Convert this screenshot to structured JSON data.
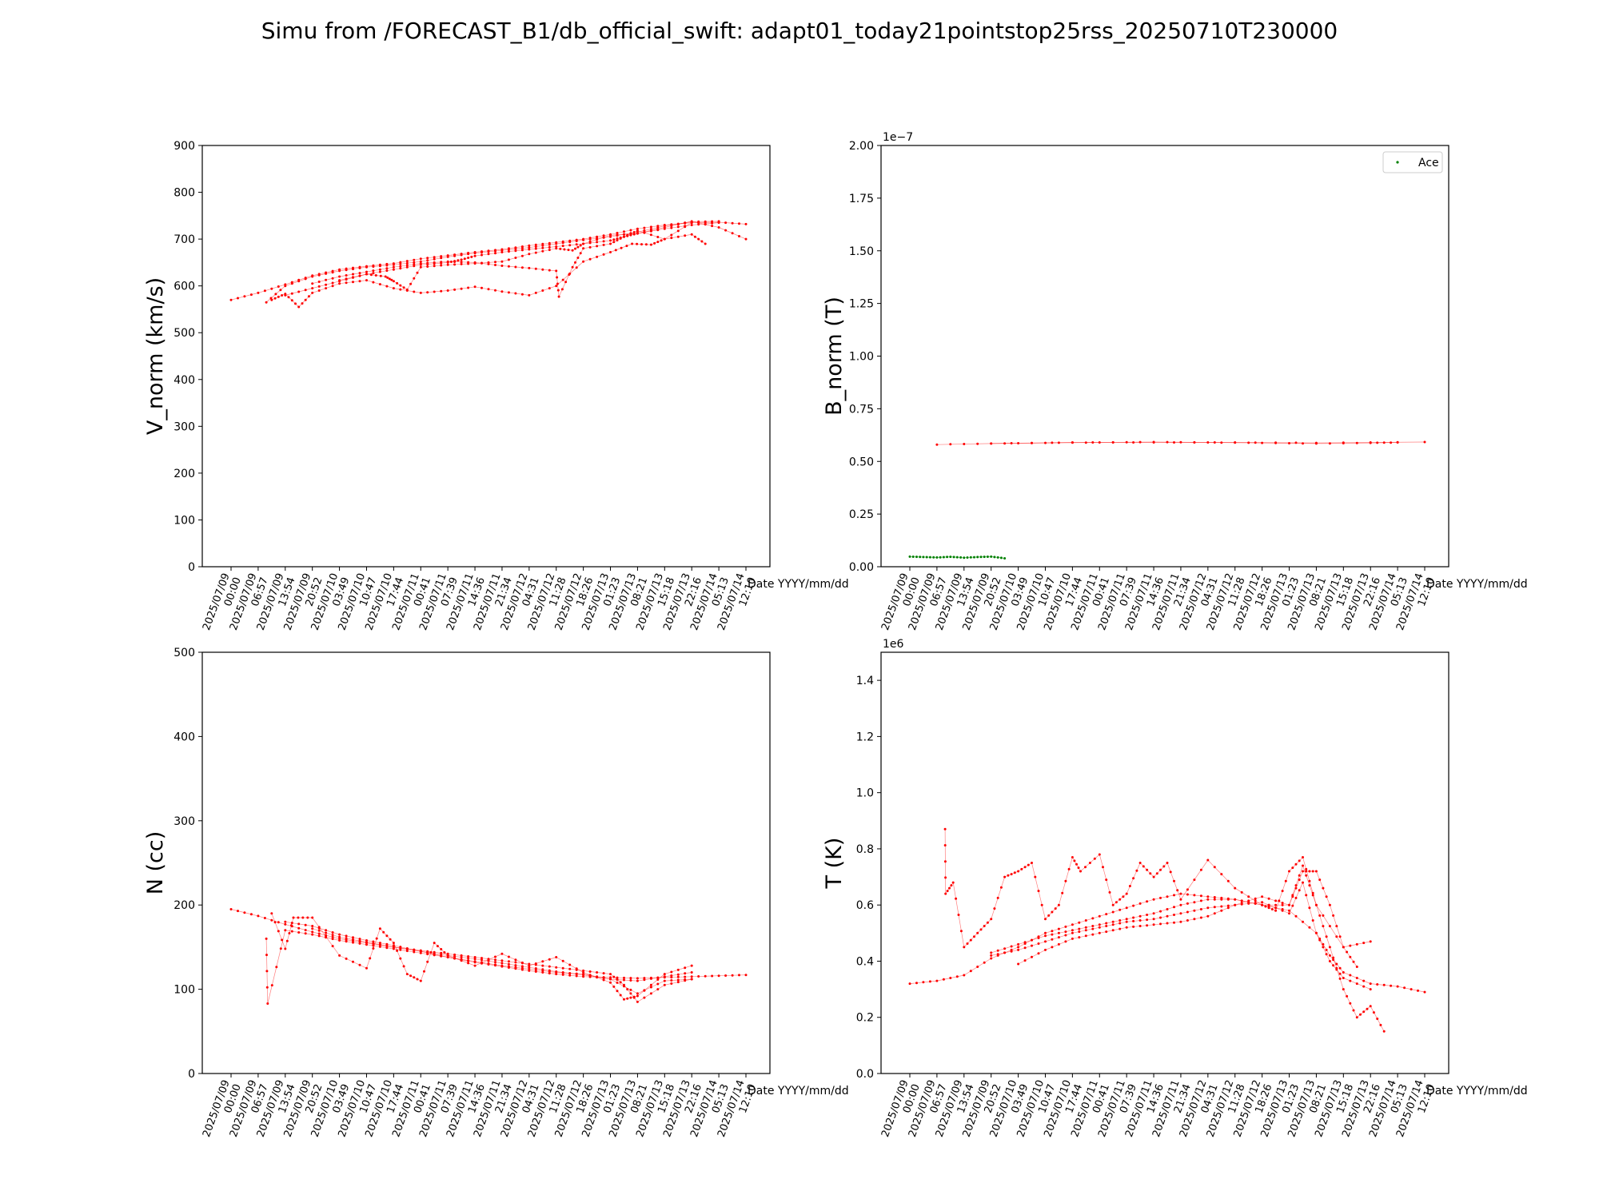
{
  "figure": {
    "title": "Simu from /FORECAST_B1/db_official_swift: adapt01_today21pointstop25rss_20250710T230000"
  },
  "x_ticks": [
    "2025/07/09 00:00",
    "2025/07/09 06:57",
    "2025/07/09 13:54",
    "2025/07/09 20:52",
    "2025/07/10 03:49",
    "2025/07/10 10:47",
    "2025/07/10 17:44",
    "2025/07/11 00:41",
    "2025/07/11 07:39",
    "2025/07/11 14:36",
    "2025/07/11 21:34",
    "2025/07/12 04:31",
    "2025/07/12 11:28",
    "2025/07/12 18:26",
    "2025/07/13 01:23",
    "2025/07/13 08:21",
    "2025/07/13 15:18",
    "2025/07/13 22:16",
    "2025/07/14 05:13",
    "2025/07/14 12:10"
  ],
  "x_label": "Date YYYY/mm/dd",
  "colors": {
    "simu": "#ff0000",
    "ace": "#008000"
  },
  "chart_data": [
    {
      "id": "vnorm",
      "type": "scatter",
      "ylabel": "V_norm (km/s)",
      "ylim": [
        0,
        900
      ],
      "yticks": [
        0,
        100,
        200,
        300,
        400,
        500,
        600,
        700,
        800,
        900
      ],
      "ytick_labels": [
        "0",
        "100",
        "200",
        "300",
        "400",
        "500",
        "600",
        "700",
        "800",
        "900"
      ],
      "offset_text": "",
      "legend": [],
      "series": [
        {
          "color": "#ff0000",
          "x": [
            0,
            1,
            2,
            3,
            4,
            5,
            6,
            7,
            8,
            9,
            10,
            11,
            12,
            13,
            14,
            15,
            16,
            17,
            18,
            19
          ],
          "y": [
            570,
            585,
            603,
            622,
            635,
            642,
            648,
            658,
            665,
            672,
            678,
            686,
            693,
            700,
            710,
            722,
            730,
            735,
            736,
            732
          ]
        },
        {
          "color": "#ff0000",
          "x": [
            1.3,
            2,
            3,
            4,
            5,
            6,
            7,
            8,
            9,
            10,
            11,
            12,
            13,
            14,
            15,
            16,
            17,
            18
          ],
          "y": [
            565,
            600,
            620,
            632,
            640,
            645,
            652,
            662,
            670,
            676,
            682,
            690,
            698,
            705,
            715,
            728,
            737,
            738
          ]
        },
        {
          "color": "#ff0000",
          "x": [
            1.5,
            2,
            2.5,
            3,
            4,
            5,
            6,
            7,
            8,
            9,
            10,
            11,
            12,
            13,
            14,
            14.8,
            15.5,
            16,
            17
          ],
          "y": [
            570,
            583,
            555,
            585,
            605,
            612,
            595,
            585,
            590,
            598,
            588,
            580,
            600,
            652,
            672,
            690,
            688,
            700,
            735
          ]
        },
        {
          "color": "#ff0000",
          "x": [
            2,
            3,
            4,
            5,
            5.7,
            6,
            6.5,
            7,
            8,
            9,
            10,
            11,
            12,
            12.6,
            13,
            14,
            15,
            16,
            17,
            18,
            19
          ],
          "y": [
            580,
            595,
            610,
            625,
            620,
            610,
            592,
            640,
            645,
            648,
            652,
            668,
            680,
            676,
            690,
            708,
            712,
            725,
            738,
            725,
            700
          ]
        },
        {
          "color": "#ff0000",
          "x": [
            3,
            4,
            5,
            6,
            7,
            8,
            9,
            10,
            11,
            12,
            12.1,
            12.6,
            13,
            14,
            14.5,
            15,
            16,
            17,
            17.5
          ],
          "y": [
            605,
            620,
            630,
            640,
            648,
            652,
            650,
            643,
            638,
            632,
            577,
            640,
            680,
            690,
            705,
            718,
            700,
            710,
            690
          ]
        },
        {
          "color": "#ff0000",
          "x": [
            4,
            5,
            6,
            7,
            8,
            8.5,
            9,
            10,
            11,
            12,
            13,
            14,
            14.5,
            15,
            16,
            17,
            18
          ],
          "y": [
            612,
            625,
            635,
            645,
            650,
            656,
            664,
            672,
            678,
            684,
            690,
            697,
            705,
            712,
            722,
            730,
            735
          ]
        }
      ]
    },
    {
      "id": "bnorm",
      "type": "scatter",
      "ylabel": "B_norm (T)",
      "ylim": [
        0,
        2.0
      ],
      "yticks": [
        0,
        0.25,
        0.5,
        0.75,
        1.0,
        1.25,
        1.5,
        1.75,
        2.0
      ],
      "ytick_labels": [
        "0.00",
        "0.25",
        "0.50",
        "0.75",
        "1.00",
        "1.25",
        "1.50",
        "1.75",
        "2.00"
      ],
      "offset_text": "1e−7",
      "legend": [
        {
          "label": "Ace",
          "color": "#008000"
        }
      ],
      "series": [
        {
          "color": "#ff0000",
          "x": [
            1,
            3,
            6,
            9,
            12,
            15,
            19
          ],
          "y": [
            0.58,
            0.585,
            0.59,
            0.59,
            0.59,
            0.588,
            0.592
          ]
        },
        {
          "color": "#ff0000",
          "x": [
            3,
            5,
            7,
            9,
            11,
            13,
            15,
            17,
            18
          ],
          "y": [
            0.585,
            0.588,
            0.59,
            0.592,
            0.59,
            0.588,
            0.585,
            0.588,
            0.59
          ]
        },
        {
          "color": "#008000",
          "x": [
            0,
            0.5,
            1,
            1.5,
            2,
            2.5,
            3,
            3.5
          ],
          "y": [
            0.048,
            0.046,
            0.044,
            0.047,
            0.043,
            0.046,
            0.048,
            0.04
          ]
        }
      ]
    },
    {
      "id": "n",
      "type": "scatter",
      "ylabel": "N (cc)",
      "ylim": [
        0,
        500
      ],
      "yticks": [
        0,
        100,
        200,
        300,
        400,
        500
      ],
      "ytick_labels": [
        "0",
        "100",
        "200",
        "300",
        "400",
        "500"
      ],
      "offset_text": "",
      "legend": [],
      "series": [
        {
          "color": "#ff0000",
          "x": [
            0,
            1,
            2,
            3,
            4,
            5,
            6,
            7,
            8,
            9,
            10,
            11,
            12,
            13,
            14,
            15,
            16,
            17,
            18,
            19
          ],
          "y": [
            195,
            187,
            177,
            168,
            160,
            155,
            150,
            145,
            138,
            132,
            127,
            122,
            118,
            115,
            114,
            113,
            114,
            115,
            116,
            117
          ]
        },
        {
          "color": "#ff0000",
          "x": [
            1.3,
            1.35,
            2,
            3,
            4,
            5,
            6,
            7,
            8,
            9,
            10,
            11,
            12,
            13,
            14,
            15,
            16,
            17
          ],
          "y": [
            160,
            83,
            170,
            165,
            158,
            153,
            148,
            143,
            138,
            133,
            128,
            124,
            120,
            118,
            112,
            95,
            110,
            112
          ]
        },
        {
          "color": "#ff0000",
          "x": [
            1.5,
            2,
            2.3,
            3,
            4,
            5,
            5.5,
            6,
            6.5,
            7,
            7.5,
            8,
            9,
            10,
            11,
            12,
            13,
            14,
            14.5,
            15,
            16,
            17
          ],
          "y": [
            190,
            148,
            185,
            185,
            140,
            125,
            172,
            155,
            118,
            110,
            155,
            140,
            128,
            142,
            128,
            138,
            120,
            108,
            88,
            92,
            118,
            128
          ]
        },
        {
          "color": "#ff0000",
          "x": [
            2,
            3,
            4,
            5,
            6,
            7,
            8,
            9,
            10,
            11,
            12,
            13,
            14,
            15,
            16,
            17
          ],
          "y": [
            180,
            175,
            165,
            158,
            152,
            145,
            140,
            136,
            131,
            126,
            121,
            117,
            112,
            110,
            115,
            120
          ]
        },
        {
          "color": "#ff0000",
          "x": [
            3,
            4,
            5,
            6,
            7,
            8,
            9,
            10,
            11,
            12,
            13,
            14,
            14.5,
            15,
            16,
            17
          ],
          "y": [
            172,
            162,
            156,
            150,
            146,
            142,
            138,
            134,
            130,
            126,
            122,
            118,
            105,
            85,
            105,
            112
          ]
        }
      ]
    },
    {
      "id": "t",
      "type": "scatter",
      "ylabel": "T (K)",
      "ylim": [
        0,
        1.5
      ],
      "yticks": [
        0,
        0.2,
        0.4,
        0.6,
        0.8,
        1.0,
        1.2,
        1.4
      ],
      "ytick_labels": [
        "0.0",
        "0.2",
        "0.4",
        "0.6",
        "0.8",
        "1.0",
        "1.2",
        "1.4"
      ],
      "offset_text": "1e6",
      "legend": [],
      "series": [
        {
          "color": "#ff0000",
          "x": [
            0,
            1,
            2,
            3,
            4,
            5,
            6,
            7,
            8,
            9,
            10,
            11,
            12,
            13,
            14,
            15,
            15.5,
            16,
            17,
            18,
            19
          ],
          "y": [
            0.32,
            0.33,
            0.35,
            0.41,
            0.45,
            0.5,
            0.53,
            0.56,
            0.59,
            0.62,
            0.64,
            0.63,
            0.62,
            0.6,
            0.58,
            0.5,
            0.42,
            0.36,
            0.32,
            0.31,
            0.29
          ]
        },
        {
          "color": "#ff0000",
          "x": [
            1.3,
            1.32,
            1.6,
            2,
            2.5,
            3,
            3.5,
            4,
            4.5,
            5,
            5.5,
            6,
            6.3,
            7,
            7.5,
            8,
            8.5,
            9,
            9.5,
            10,
            11,
            12,
            13,
            13.5,
            14,
            14.5,
            15,
            16,
            17
          ],
          "y": [
            0.87,
            0.64,
            0.68,
            0.45,
            0.5,
            0.55,
            0.7,
            0.72,
            0.75,
            0.55,
            0.6,
            0.77,
            0.72,
            0.78,
            0.6,
            0.64,
            0.75,
            0.7,
            0.75,
            0.62,
            0.76,
            0.66,
            0.6,
            0.58,
            0.72,
            0.77,
            0.6,
            0.45,
            0.47
          ]
        },
        {
          "color": "#ff0000",
          "x": [
            3,
            4,
            5,
            6,
            7,
            8,
            9,
            10,
            11,
            12,
            13,
            14,
            14.5,
            15,
            15.5,
            16,
            16.5,
            17,
            17.5
          ],
          "y": [
            0.43,
            0.46,
            0.49,
            0.51,
            0.53,
            0.55,
            0.57,
            0.6,
            0.62,
            0.62,
            0.6,
            0.6,
            0.74,
            0.6,
            0.45,
            0.3,
            0.2,
            0.24,
            0.15
          ]
        },
        {
          "color": "#ff0000",
          "x": [
            3,
            4,
            5,
            6,
            7,
            8,
            9,
            10,
            11,
            12,
            13,
            14,
            14.5,
            15,
            15.5,
            16,
            17
          ],
          "y": [
            0.42,
            0.44,
            0.47,
            0.5,
            0.52,
            0.54,
            0.55,
            0.57,
            0.59,
            0.6,
            0.61,
            0.57,
            0.68,
            0.5,
            0.4,
            0.34,
            0.3
          ]
        },
        {
          "color": "#ff0000",
          "x": [
            4,
            5,
            6,
            7,
            8,
            9,
            10,
            11,
            12,
            13,
            14,
            14.5,
            15,
            15.5,
            16,
            16.5
          ],
          "y": [
            0.39,
            0.44,
            0.48,
            0.5,
            0.52,
            0.53,
            0.54,
            0.56,
            0.6,
            0.63,
            0.6,
            0.72,
            0.72,
            0.6,
            0.45,
            0.38
          ]
        }
      ]
    }
  ]
}
